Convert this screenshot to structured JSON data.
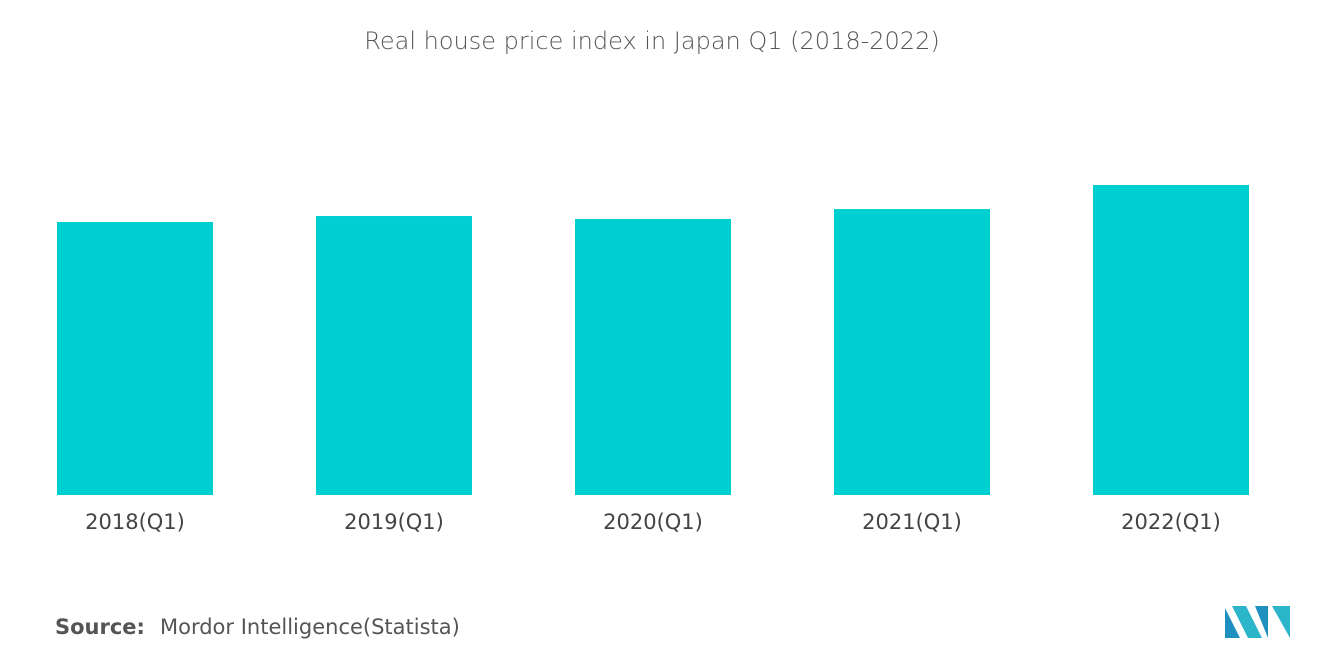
{
  "chart_data": {
    "type": "bar",
    "title": "Real house price index in Japan Q1 (2018-2022)",
    "categories": [
      "2018(Q1)",
      "2019(Q1)",
      "2020(Q1)",
      "2021(Q1)",
      "2022(Q1)"
    ],
    "values": [
      110,
      112.4,
      111.2,
      115.2,
      124.9
    ],
    "color": "#00cfd1",
    "source_label": "Source:",
    "source": "Mordor Intelligence(Statista)"
  }
}
